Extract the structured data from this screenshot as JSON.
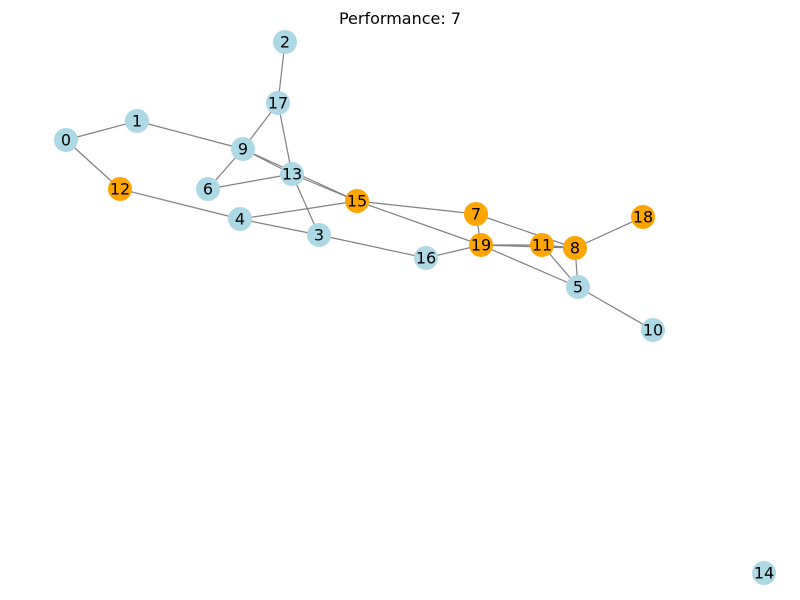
{
  "title": "Performance: 7",
  "colors": {
    "default_node": "#add8e6",
    "highlight_node": "#ffa500",
    "edge": "#808080",
    "label": "#000000"
  },
  "nodes": [
    {
      "id": "0",
      "highlighted": false
    },
    {
      "id": "1",
      "highlighted": false
    },
    {
      "id": "2",
      "highlighted": false
    },
    {
      "id": "3",
      "highlighted": false
    },
    {
      "id": "4",
      "highlighted": false
    },
    {
      "id": "5",
      "highlighted": false
    },
    {
      "id": "6",
      "highlighted": false
    },
    {
      "id": "7",
      "highlighted": true
    },
    {
      "id": "8",
      "highlighted": true
    },
    {
      "id": "9",
      "highlighted": false
    },
    {
      "id": "10",
      "highlighted": false
    },
    {
      "id": "11",
      "highlighted": true
    },
    {
      "id": "12",
      "highlighted": true
    },
    {
      "id": "13",
      "highlighted": false
    },
    {
      "id": "14",
      "highlighted": false
    },
    {
      "id": "15",
      "highlighted": true
    },
    {
      "id": "16",
      "highlighted": false
    },
    {
      "id": "17",
      "highlighted": false
    },
    {
      "id": "18",
      "highlighted": true
    },
    {
      "id": "19",
      "highlighted": true
    }
  ],
  "edges": [
    [
      "0",
      "1"
    ],
    [
      "0",
      "12"
    ],
    [
      "1",
      "9"
    ],
    [
      "2",
      "17"
    ],
    [
      "17",
      "9"
    ],
    [
      "17",
      "13"
    ],
    [
      "9",
      "6"
    ],
    [
      "9",
      "13"
    ],
    [
      "9",
      "15"
    ],
    [
      "6",
      "13"
    ],
    [
      "13",
      "15"
    ],
    [
      "13",
      "3"
    ],
    [
      "12",
      "4"
    ],
    [
      "4",
      "15"
    ],
    [
      "4",
      "3"
    ],
    [
      "3",
      "16"
    ],
    [
      "16",
      "19"
    ],
    [
      "15",
      "7"
    ],
    [
      "15",
      "19"
    ],
    [
      "7",
      "19"
    ],
    [
      "7",
      "8"
    ],
    [
      "19",
      "11"
    ],
    [
      "19",
      "8"
    ],
    [
      "19",
      "5"
    ],
    [
      "11",
      "8"
    ],
    [
      "11",
      "5"
    ],
    [
      "8",
      "5"
    ],
    [
      "8",
      "18"
    ],
    [
      "5",
      "10"
    ]
  ]
}
